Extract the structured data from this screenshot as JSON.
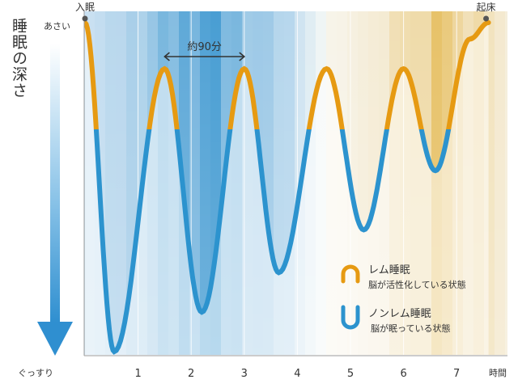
{
  "chart_data": {
    "type": "area",
    "title": "",
    "ylabel": "睡眠の深さ",
    "y_top_label": "あさい",
    "y_bottom_label": "ぐっすり",
    "xlabel": "時間",
    "x_ticks": [
      "1",
      "2",
      "3",
      "4",
      "5",
      "6",
      "7"
    ],
    "xlim": [
      0,
      8
    ],
    "start_label": "入眠",
    "end_label": "起床",
    "cycle_annotation": "約90分",
    "cycle_span": [
      1.5,
      3.0
    ],
    "depth_scale": "0 = あさい, 1 = ぐっすり",
    "sleep_curve": [
      {
        "t": 0.0,
        "depth": 0.0
      },
      {
        "t": 0.55,
        "depth": 1.0
      },
      {
        "t": 1.5,
        "depth": 0.14
      },
      {
        "t": 2.2,
        "depth": 0.88
      },
      {
        "t": 3.0,
        "depth": 0.14
      },
      {
        "t": 3.65,
        "depth": 0.76
      },
      {
        "t": 4.55,
        "depth": 0.14
      },
      {
        "t": 5.25,
        "depth": 0.63
      },
      {
        "t": 6.0,
        "depth": 0.14
      },
      {
        "t": 6.6,
        "depth": 0.45
      },
      {
        "t": 7.25,
        "depth": 0.05
      },
      {
        "t": 7.6,
        "depth": 0.0
      }
    ],
    "legend": [
      {
        "label": "レム睡眠",
        "desc": "脳が活性化している状態",
        "color": "#E69A12"
      },
      {
        "label": "ノンレム睡眠",
        "desc": "脳が眠っている状態",
        "color": "#2C93CE"
      }
    ]
  }
}
